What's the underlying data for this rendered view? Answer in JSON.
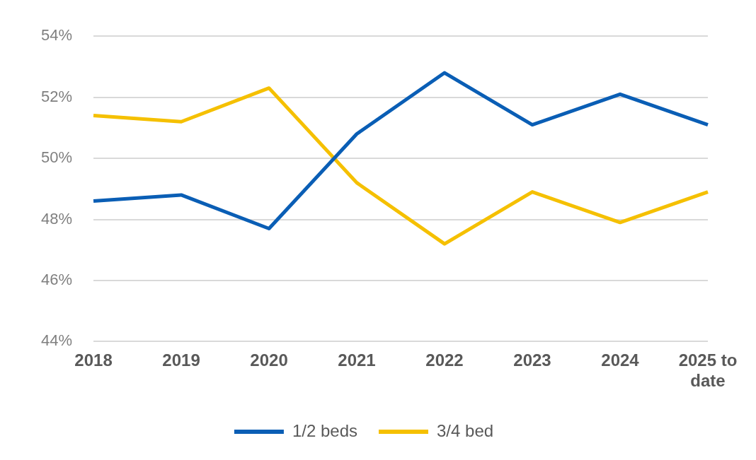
{
  "chart_data": {
    "type": "line",
    "categories": [
      "2018",
      "2019",
      "2020",
      "2021",
      "2022",
      "2023",
      "2024",
      "2025 to date"
    ],
    "series": [
      {
        "name": "1/2 beds",
        "color": "#0a5eb5",
        "values": [
          48.6,
          48.8,
          47.7,
          50.8,
          52.8,
          51.1,
          52.1,
          51.1
        ]
      },
      {
        "name": "3/4 bed",
        "color": "#f5c000",
        "values": [
          51.4,
          51.2,
          52.3,
          49.2,
          47.2,
          48.9,
          47.9,
          48.9
        ]
      }
    ],
    "ylim": [
      44,
      54
    ],
    "yticks": [
      {
        "value": 44,
        "label": "44%"
      },
      {
        "value": 46,
        "label": "46%"
      },
      {
        "value": 48,
        "label": "48%"
      },
      {
        "value": 50,
        "label": "50%"
      },
      {
        "value": 52,
        "label": "52%"
      },
      {
        "value": 54,
        "label": "54%"
      }
    ],
    "grid": "y",
    "legend": "bottom",
    "marker": "none",
    "line_style": "solid"
  }
}
